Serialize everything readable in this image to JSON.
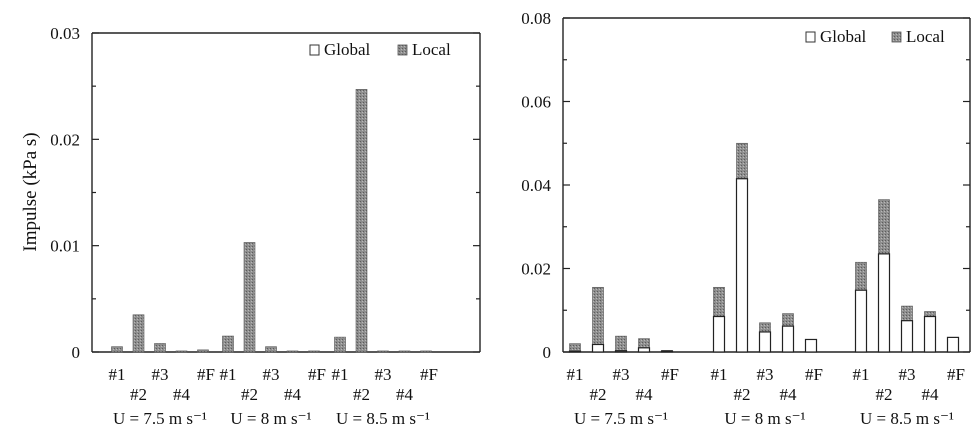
{
  "chart_data": [
    {
      "type": "bar",
      "stacked": true,
      "ylabel": "Impulse (kPa s)",
      "ylim": [
        0,
        0.03
      ],
      "yticks": [
        0,
        0.01,
        0.02,
        0.03
      ],
      "ytick_labels": [
        "0",
        "0.01",
        "0.02",
        "0.03"
      ],
      "categories": [
        "#1",
        "#2",
        "#3",
        "#4",
        "#F"
      ],
      "groups": [
        "U = 7.5 m s⁻¹",
        "U = 8 m s⁻¹",
        "U = 8.5 m s⁻¹"
      ],
      "legend": {
        "position": "top-right",
        "entries": [
          "Global",
          "Local"
        ]
      },
      "series": [
        {
          "name": "Global",
          "color": "#ffffff",
          "values": [
            [
              0,
              0,
              0,
              0,
              0
            ],
            [
              0,
              0,
              0,
              0,
              0
            ],
            [
              0,
              0,
              0,
              0,
              0
            ]
          ]
        },
        {
          "name": "Local",
          "color": "#8a8a8a",
          "values": [
            [
              0.0005,
              0.0035,
              0.0008,
              0.0001,
              0.0002
            ],
            [
              0.0015,
              0.0103,
              0.0005,
              0.0001,
              0.0001
            ],
            [
              0.0014,
              0.0247,
              0.0001,
              0.0001,
              0.0001
            ]
          ]
        }
      ]
    },
    {
      "type": "bar",
      "stacked": true,
      "ylabel": "",
      "ylim": [
        0,
        0.08
      ],
      "yticks": [
        0,
        0.02,
        0.04,
        0.06,
        0.08
      ],
      "ytick_labels": [
        "0",
        "0.02",
        "0.04",
        "0.06",
        "0.08"
      ],
      "categories": [
        "#1",
        "#2",
        "#3",
        "#4",
        "#F"
      ],
      "groups": [
        "U = 7.5 m s⁻¹",
        "U = 8 m s⁻¹",
        "U = 8.5 m s⁻¹"
      ],
      "legend": {
        "position": "top-right",
        "entries": [
          "Global",
          "Local"
        ]
      },
      "series": [
        {
          "name": "Global",
          "color": "#ffffff",
          "values": [
            [
              0.0002,
              0.0018,
              0.0003,
              0.001,
              0.0002
            ],
            [
              0.0085,
              0.0415,
              0.0048,
              0.0062,
              0.003
            ],
            [
              0.0148,
              0.0235,
              0.0075,
              0.0085,
              0.0035
            ]
          ]
        },
        {
          "name": "Local",
          "color": "#8a8a8a",
          "values": [
            [
              0.0018,
              0.0137,
              0.0035,
              0.0022,
              0.0002
            ],
            [
              0.007,
              0.0085,
              0.0022,
              0.003,
              0.0
            ],
            [
              0.0067,
              0.013,
              0.0035,
              0.0012,
              0.0
            ]
          ]
        }
      ]
    }
  ]
}
